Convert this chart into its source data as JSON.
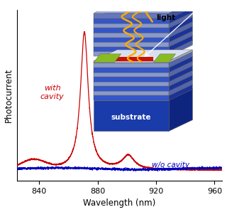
{
  "x_min": 825,
  "x_max": 965,
  "x_ticks": [
    840,
    880,
    920,
    960
  ],
  "xlabel": "Wavelength (nm)",
  "ylabel": "Photocurrent",
  "bg_color": "#ffffff",
  "red_color": "#cc0000",
  "blue_color": "#0000bb",
  "red_label": "with\ncavity",
  "blue_label": "w/o cavity"
}
